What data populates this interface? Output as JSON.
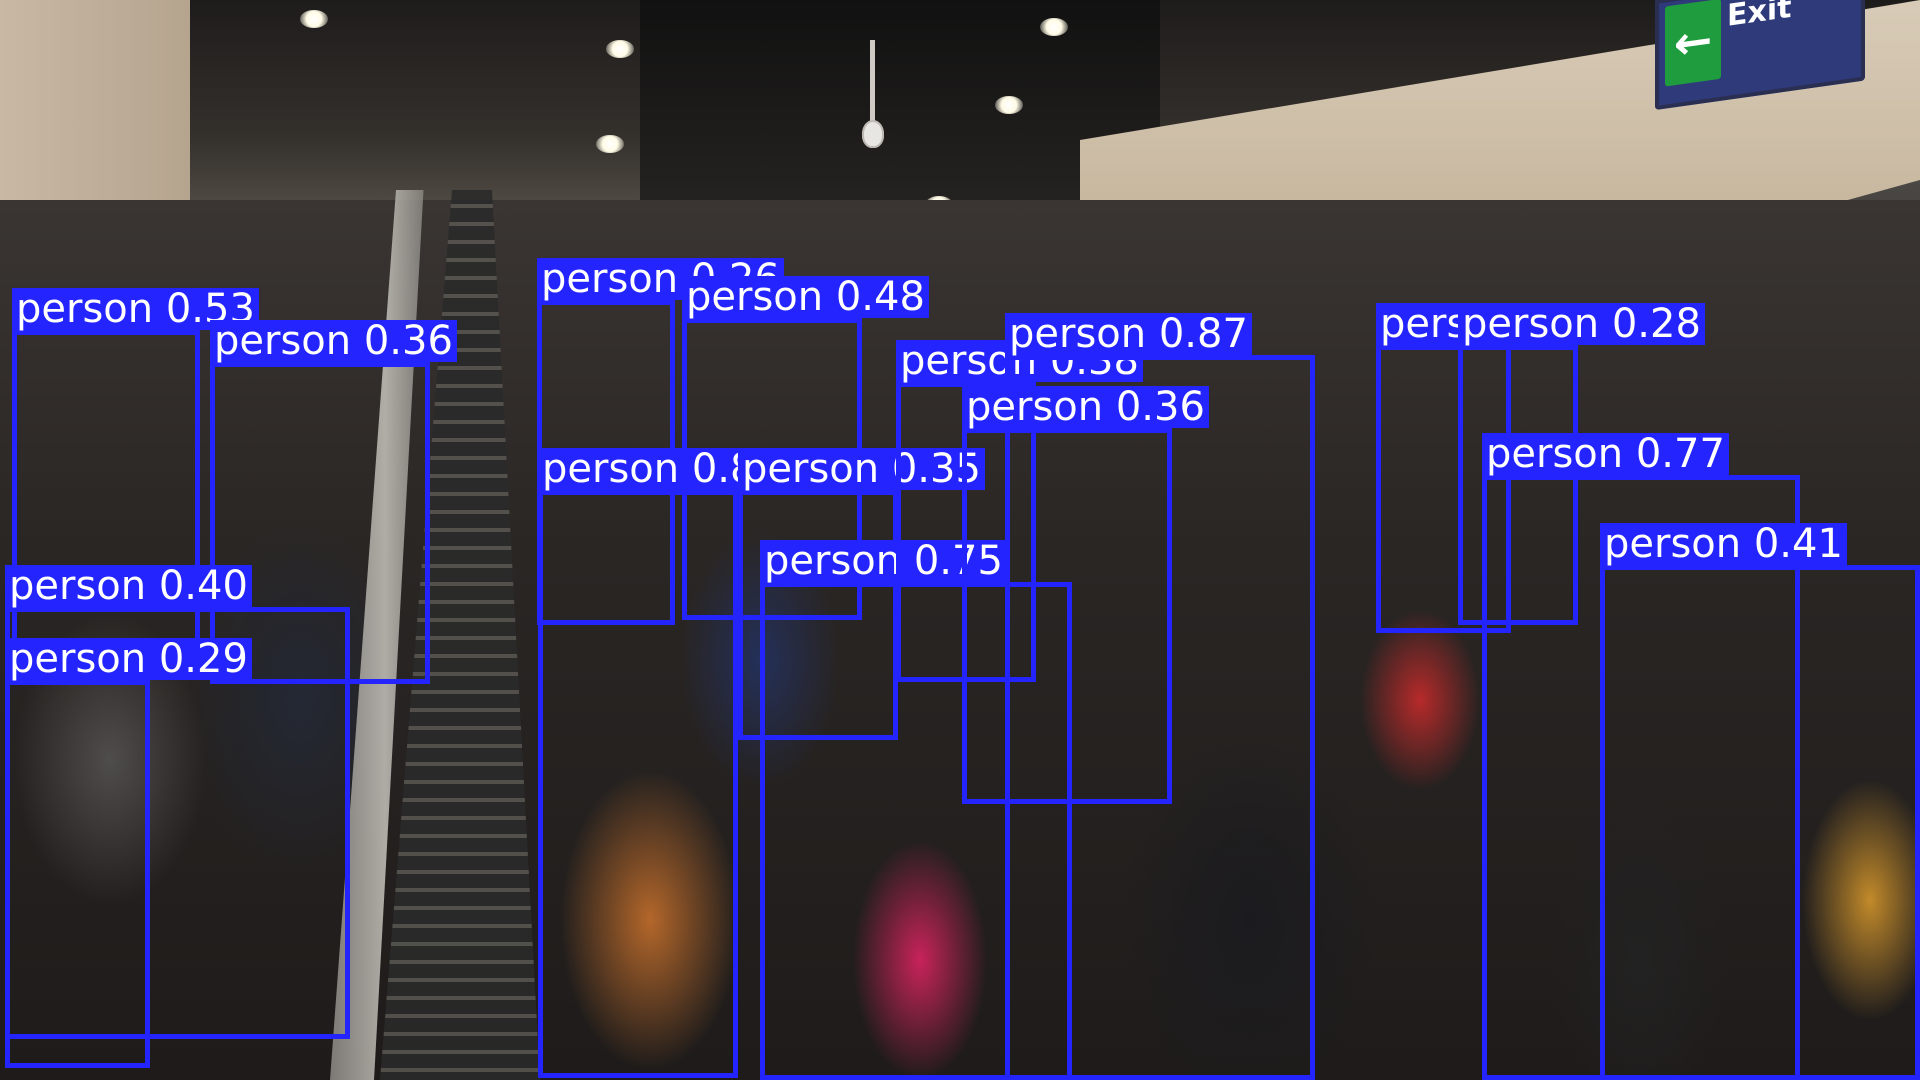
{
  "scene": {
    "exit_sign": {
      "arrow_icon": "left-arrow-icon",
      "text": "Exit",
      "color": "#2f3a7a",
      "arrow_bg": "#1f9c3e"
    }
  },
  "detection_style": {
    "box_color": "#2424ff",
    "label_text_color": "#ffffff"
  },
  "detections": [
    {
      "label": "person",
      "score": "0.53"
    },
    {
      "label": "person",
      "score": "0.36"
    },
    {
      "label": "person",
      "score": "0.40"
    },
    {
      "label": "person",
      "score": "0.29"
    },
    {
      "label": "person",
      "score": "0.26"
    },
    {
      "label": "person",
      "score": "0.48"
    },
    {
      "label": "person",
      "score": "0.89"
    },
    {
      "label": "person",
      "score": "0.35"
    },
    {
      "label": "person",
      "score": "0.75"
    },
    {
      "label": "person",
      "score": "0.38"
    },
    {
      "label": "person",
      "score": "0.87"
    },
    {
      "label": "person",
      "score": "0.36"
    },
    {
      "label": "person",
      "score": "0.36"
    },
    {
      "label": "person",
      "score": "0.28"
    },
    {
      "label": "person",
      "score": "0.77"
    },
    {
      "label": "person",
      "score": "0.41"
    }
  ]
}
